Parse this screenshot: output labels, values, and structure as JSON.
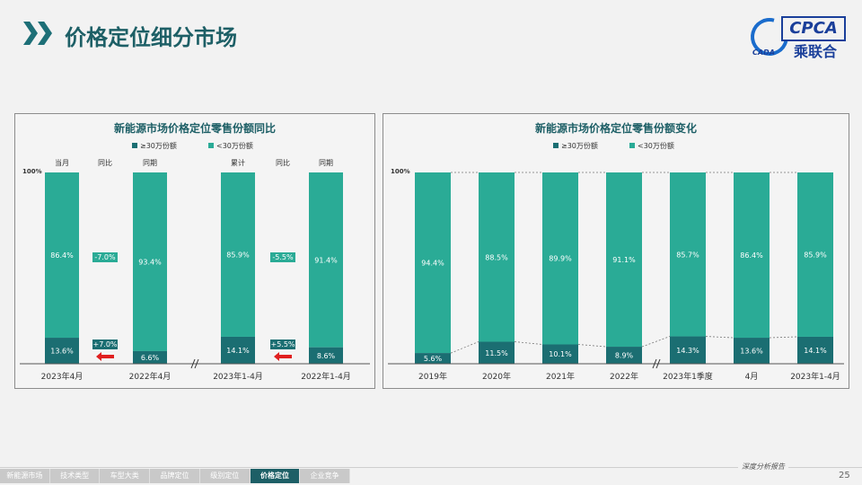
{
  "page": {
    "title": "价格定位细分市场",
    "page_number": "25",
    "footer_text": "深度分析报告"
  },
  "logo": {
    "brand": "CPCA",
    "sub": "乘联合",
    "small": "CADA"
  },
  "footer_nav": [
    "新能源市场",
    "技术类型",
    "车型大类",
    "品牌定位",
    "级别定位",
    "价格定位",
    "企业竞争"
  ],
  "footer_active": 5,
  "chart_data": [
    {
      "type": "bar",
      "title": "新能源市场价格定位零售份额同比",
      "legend": [
        "≥30万份额",
        "<30万份额"
      ],
      "colors": {
        "ge30": "#1b6e72",
        "lt30": "#2aab96"
      },
      "ylabel": "100%",
      "column_headers": [
        "当月",
        "同比",
        "同期",
        "累计",
        "同比",
        "同期"
      ],
      "categories": [
        "2023年4月",
        "2022年4月",
        "2023年1-4月",
        "2022年1-4月"
      ],
      "series": [
        {
          "name": "≥30万份额",
          "values": [
            13.6,
            6.6,
            14.1,
            8.6
          ]
        },
        {
          "name": "<30万份额",
          "values": [
            86.4,
            93.4,
            85.9,
            91.4
          ]
        }
      ],
      "yoy": [
        {
          "ge30": "+7.0%",
          "lt30": "-7.0%"
        },
        {
          "ge30": "+5.5%",
          "lt30": "-5.5%"
        }
      ]
    },
    {
      "type": "bar",
      "title": "新能源市场价格定位零售份额变化",
      "legend": [
        "≥30万份额",
        "<30万份额"
      ],
      "colors": {
        "ge30": "#1b6e72",
        "lt30": "#2aab96"
      },
      "ylabel": "100%",
      "categories": [
        "2019年",
        "2020年",
        "2021年",
        "2022年",
        "2023年1季度",
        "4月",
        "2023年1-4月"
      ],
      "series": [
        {
          "name": "≥30万份额",
          "values": [
            5.6,
            11.5,
            10.1,
            8.9,
            14.3,
            13.6,
            14.1
          ]
        },
        {
          "name": "<30万份额",
          "values": [
            94.4,
            88.5,
            89.9,
            91.1,
            85.7,
            86.4,
            85.9
          ]
        }
      ]
    }
  ]
}
